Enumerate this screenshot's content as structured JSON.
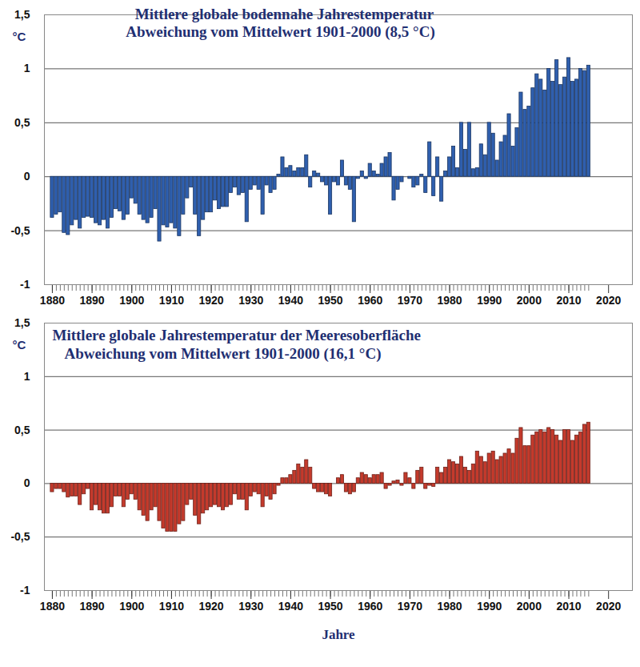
{
  "chart_data": [
    {
      "type": "bar",
      "title": "Mittlere globale bodennahe Jahrestemperatur",
      "subtitle": "Abweichung vom Mittelwert 1901-2000 (8,5 °C)",
      "ylabel": "°C",
      "color": "#2f5fae",
      "x": [
        1880,
        1881,
        1882,
        1883,
        1884,
        1885,
        1886,
        1887,
        1888,
        1889,
        1890,
        1891,
        1892,
        1893,
        1894,
        1895,
        1896,
        1897,
        1898,
        1899,
        1900,
        1901,
        1902,
        1903,
        1904,
        1905,
        1906,
        1907,
        1908,
        1909,
        1910,
        1911,
        1912,
        1913,
        1914,
        1915,
        1916,
        1917,
        1918,
        1919,
        1920,
        1921,
        1922,
        1923,
        1924,
        1925,
        1926,
        1927,
        1928,
        1929,
        1930,
        1931,
        1932,
        1933,
        1934,
        1935,
        1936,
        1937,
        1938,
        1939,
        1940,
        1941,
        1942,
        1943,
        1944,
        1945,
        1946,
        1947,
        1948,
        1949,
        1950,
        1951,
        1952,
        1953,
        1954,
        1955,
        1956,
        1957,
        1958,
        1959,
        1960,
        1961,
        1962,
        1963,
        1964,
        1965,
        1966,
        1967,
        1968,
        1969,
        1970,
        1971,
        1972,
        1973,
        1974,
        1975,
        1976,
        1977,
        1978,
        1979,
        1980,
        1981,
        1982,
        1983,
        1984,
        1985,
        1986,
        1987,
        1988,
        1989,
        1990,
        1991,
        1992,
        1993,
        1994,
        1995,
        1996,
        1997,
        1998,
        1999,
        2000,
        2001,
        2002,
        2003,
        2004,
        2005,
        2006,
        2007,
        2008,
        2009,
        2010,
        2011,
        2012,
        2013,
        2014,
        2015
      ],
      "values": [
        -0.38,
        -0.35,
        -0.33,
        -0.52,
        -0.54,
        -0.45,
        -0.4,
        -0.48,
        -0.38,
        -0.37,
        -0.38,
        -0.43,
        -0.45,
        -0.4,
        -0.48,
        -0.38,
        -0.3,
        -0.32,
        -0.4,
        -0.35,
        -0.2,
        -0.25,
        -0.35,
        -0.4,
        -0.43,
        -0.38,
        -0.3,
        -0.6,
        -0.45,
        -0.47,
        -0.43,
        -0.48,
        -0.55,
        -0.35,
        -0.2,
        -0.1,
        -0.35,
        -0.55,
        -0.4,
        -0.33,
        -0.33,
        -0.22,
        -0.3,
        -0.28,
        -0.28,
        -0.15,
        -0.1,
        -0.17,
        -0.15,
        -0.42,
        -0.12,
        -0.08,
        -0.12,
        -0.35,
        -0.08,
        -0.15,
        -0.12,
        0.02,
        0.18,
        0.08,
        0.1,
        0.05,
        0.08,
        0.08,
        0.2,
        -0.1,
        0.05,
        0.03,
        -0.05,
        -0.08,
        -0.35,
        -0.05,
        -0.08,
        0.15,
        -0.08,
        -0.12,
        -0.42,
        -0.02,
        0.05,
        -0.02,
        0.12,
        0.05,
        0.02,
        0.12,
        0.18,
        0.22,
        -0.22,
        -0.12,
        -0.05,
        0.0,
        -0.02,
        -0.1,
        -0.08,
        0.02,
        -0.15,
        0.32,
        -0.18,
        0.18,
        -0.23,
        0.05,
        0.18,
        0.28,
        0.08,
        0.5,
        0.25,
        0.5,
        0.07,
        0.08,
        0.3,
        0.2,
        0.5,
        0.4,
        0.15,
        0.32,
        0.38,
        0.58,
        0.28,
        0.45,
        0.78,
        0.62,
        0.65,
        0.82,
        0.95,
        0.9,
        0.8,
        1.0,
        0.88,
        1.08,
        0.85,
        0.92,
        1.1,
        0.88,
        0.9,
        1.0,
        0.98,
        1.03
      ],
      "xlim": [
        1878,
        2026
      ],
      "xticks": [
        1880,
        1890,
        1900,
        1910,
        1920,
        1930,
        1940,
        1950,
        1960,
        1970,
        1980,
        1990,
        2000,
        2010,
        2020
      ],
      "ylim": [
        -1,
        1.5
      ],
      "yticks": [
        -1,
        {
          "value": -0.5,
          "label": "-0,5"
        },
        0,
        {
          "value": 0.5,
          "label": "0,5"
        },
        1,
        {
          "value": 1.5,
          "label": "1,5"
        }
      ],
      "grid": true
    },
    {
      "type": "bar",
      "title": "Mittlere globale Jahrestemperatur der Meeresoberfläche",
      "subtitle": "Abweichung vom Mittelwert 1901-2000 (16,1 °C)",
      "ylabel": "°C",
      "xlabel": "Jahre",
      "color": "#c43a2c",
      "x": [
        1880,
        1881,
        1882,
        1883,
        1884,
        1885,
        1886,
        1887,
        1888,
        1889,
        1890,
        1891,
        1892,
        1893,
        1894,
        1895,
        1896,
        1897,
        1898,
        1899,
        1900,
        1901,
        1902,
        1903,
        1904,
        1905,
        1906,
        1907,
        1908,
        1909,
        1910,
        1911,
        1912,
        1913,
        1914,
        1915,
        1916,
        1917,
        1918,
        1919,
        1920,
        1921,
        1922,
        1923,
        1924,
        1925,
        1926,
        1927,
        1928,
        1929,
        1930,
        1931,
        1932,
        1933,
        1934,
        1935,
        1936,
        1937,
        1938,
        1939,
        1940,
        1941,
        1942,
        1943,
        1944,
        1945,
        1946,
        1947,
        1948,
        1949,
        1950,
        1951,
        1952,
        1953,
        1954,
        1955,
        1956,
        1957,
        1958,
        1959,
        1960,
        1961,
        1962,
        1963,
        1964,
        1965,
        1966,
        1967,
        1968,
        1969,
        1970,
        1971,
        1972,
        1973,
        1974,
        1975,
        1976,
        1977,
        1978,
        1979,
        1980,
        1981,
        1982,
        1983,
        1984,
        1985,
        1986,
        1987,
        1988,
        1989,
        1990,
        1991,
        1992,
        1993,
        1994,
        1995,
        1996,
        1997,
        1998,
        1999,
        2000,
        2001,
        2002,
        2003,
        2004,
        2005,
        2006,
        2007,
        2008,
        2009,
        2010,
        2011,
        2012,
        2013,
        2014,
        2015
      ],
      "values": [
        -0.08,
        -0.05,
        -0.05,
        -0.08,
        -0.13,
        -0.12,
        -0.12,
        -0.2,
        -0.1,
        -0.05,
        -0.25,
        -0.2,
        -0.25,
        -0.28,
        -0.28,
        -0.22,
        -0.12,
        -0.12,
        -0.22,
        -0.15,
        -0.1,
        -0.15,
        -0.25,
        -0.3,
        -0.35,
        -0.25,
        -0.22,
        -0.35,
        -0.42,
        -0.45,
        -0.45,
        -0.45,
        -0.38,
        -0.35,
        -0.2,
        -0.15,
        -0.3,
        -0.38,
        -0.28,
        -0.25,
        -0.22,
        -0.2,
        -0.22,
        -0.25,
        -0.22,
        -0.2,
        -0.1,
        -0.15,
        -0.15,
        -0.25,
        -0.12,
        -0.08,
        -0.1,
        -0.22,
        -0.12,
        -0.15,
        -0.1,
        -0.02,
        0.05,
        0.05,
        0.08,
        0.12,
        0.18,
        0.15,
        0.22,
        0.15,
        -0.05,
        -0.08,
        -0.08,
        -0.1,
        -0.12,
        0.0,
        0.05,
        0.08,
        -0.08,
        -0.1,
        -0.08,
        0.05,
        0.1,
        0.08,
        0.05,
        0.08,
        0.08,
        0.1,
        -0.05,
        -0.02,
        0.02,
        0.03,
        -0.02,
        0.1,
        0.05,
        -0.05,
        0.12,
        0.15,
        -0.05,
        -0.02,
        -0.03,
        0.15,
        0.1,
        0.15,
        0.22,
        0.2,
        0.18,
        0.25,
        0.15,
        0.12,
        0.18,
        0.3,
        0.25,
        0.2,
        0.28,
        0.3,
        0.22,
        0.25,
        0.28,
        0.32,
        0.28,
        0.42,
        0.52,
        0.35,
        0.35,
        0.45,
        0.48,
        0.5,
        0.48,
        0.52,
        0.5,
        0.45,
        0.4,
        0.5,
        0.5,
        0.4,
        0.45,
        0.48,
        0.55,
        0.57
      ],
      "xlim": [
        1878,
        2026
      ],
      "xticks": [
        1880,
        1890,
        1900,
        1910,
        1920,
        1930,
        1940,
        1950,
        1960,
        1970,
        1980,
        1990,
        2000,
        2010,
        2020
      ],
      "ylim": [
        -1,
        1.5
      ],
      "yticks": [
        -1,
        {
          "value": -0.5,
          "label": "-0,5"
        },
        0,
        {
          "value": 0.5,
          "label": "0,5"
        },
        1,
        {
          "value": 1.5,
          "label": "1,5"
        }
      ],
      "grid": true
    }
  ]
}
